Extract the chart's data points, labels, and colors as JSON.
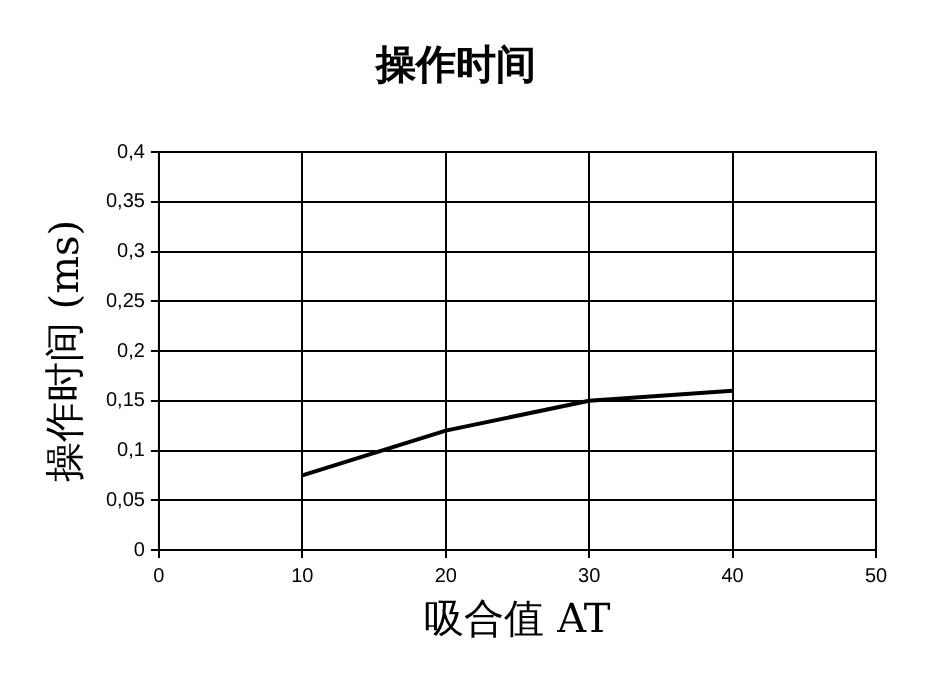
{
  "chart_data": {
    "type": "line",
    "title": "操作时间",
    "xlabel": "吸合值 AT",
    "ylabel": "操作时间 (ms)",
    "x": [
      10,
      20,
      30,
      40
    ],
    "series": [
      {
        "color": "#000000",
        "values": [
          0.075,
          0.12,
          0.15,
          0.16
        ]
      }
    ],
    "xlim": [
      0,
      50
    ],
    "xticks": [
      0,
      10,
      20,
      30,
      40,
      50
    ],
    "ylim": [
      0,
      0.4
    ],
    "yticks": [
      0,
      {
        "value": 0.05,
        "label": "0,05"
      },
      {
        "value": 0.1,
        "label": "0,1"
      },
      {
        "value": 0.15,
        "label": "0,15"
      },
      {
        "value": 0.2,
        "label": "0,2"
      },
      {
        "value": 0.25,
        "label": "0,25"
      },
      {
        "value": 0.3,
        "label": "0,3"
      },
      {
        "value": 0.35,
        "label": "0,35"
      },
      {
        "value": 0.4,
        "label": "0,4"
      }
    ],
    "grid": true,
    "legend": false,
    "marker": "none",
    "line_style": "solid"
  }
}
